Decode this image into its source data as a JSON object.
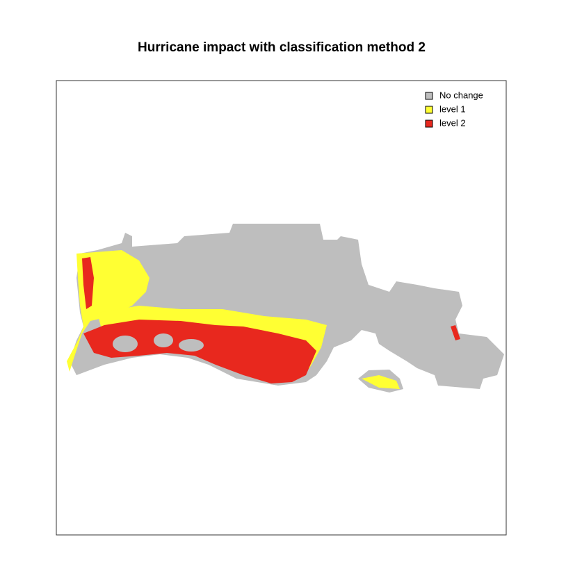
{
  "title": "Hurricane impact with classification method 2",
  "legend": [
    {
      "label": "No change",
      "color": "#bebebe"
    },
    {
      "label": "level 1",
      "color": "#ffff33"
    },
    {
      "label": "level 2",
      "color": "#e8281e"
    }
  ]
}
